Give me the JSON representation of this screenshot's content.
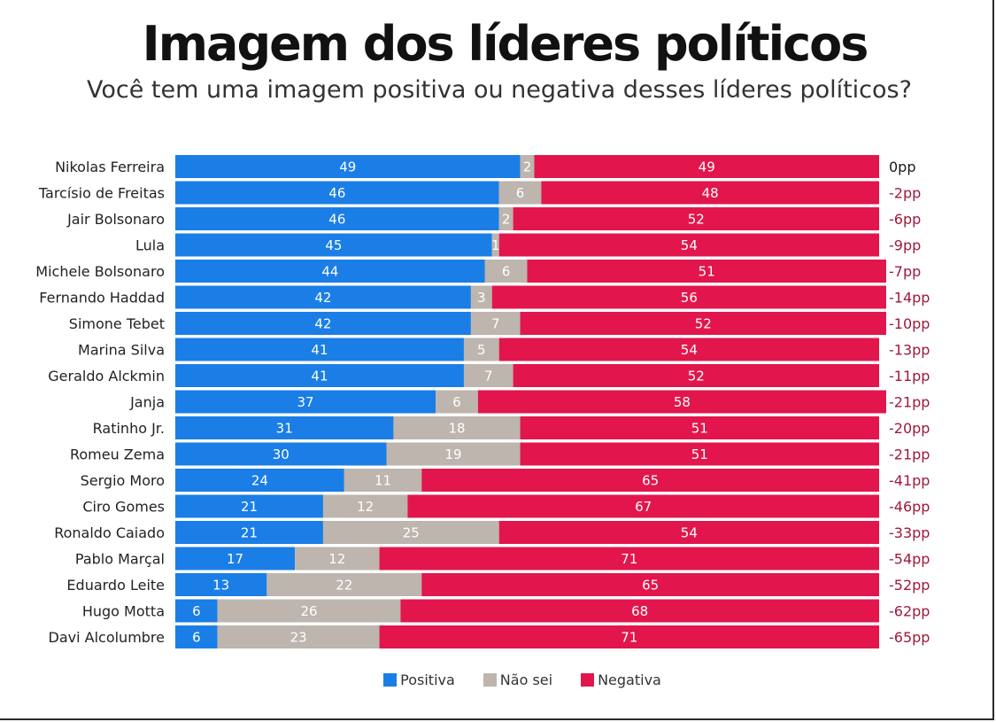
{
  "header": {
    "title": "Imagem dos líderes políticos",
    "subtitle": "Você tem uma imagem positiva ou negativa desses líderes políticos?"
  },
  "colors": {
    "positive": "#1a7ee6",
    "unsure": "#bdb5ae",
    "negative": "#e2164c",
    "net_zero": "#1a1a1a",
    "net_negative": "#a0183c"
  },
  "chart_data": {
    "type": "bar",
    "orientation": "horizontal",
    "stacked": true,
    "categories": [
      "Nikolas Ferreira",
      "Tarcísio de Freitas",
      "Jair Bolsonaro",
      "Lula",
      "Michele Bolsonaro",
      "Fernando Haddad",
      "Simone Tebet",
      "Marina Silva",
      "Geraldo Alckmin",
      "Janja",
      "Ratinho Jr.",
      "Romeu Zema",
      "Sergio Moro",
      "Ciro Gomes",
      "Ronaldo Caiado",
      "Pablo Marçal",
      "Eduardo Leite",
      "Hugo Motta",
      "Davi Alcolumbre"
    ],
    "series": [
      {
        "name": "Positiva",
        "values": [
          49,
          46,
          46,
          45,
          44,
          42,
          42,
          41,
          41,
          37,
          31,
          30,
          24,
          21,
          21,
          17,
          13,
          6,
          6
        ]
      },
      {
        "name": "Não sei",
        "values": [
          2,
          6,
          2,
          1,
          6,
          3,
          7,
          5,
          7,
          6,
          18,
          19,
          11,
          12,
          25,
          12,
          22,
          26,
          23
        ]
      },
      {
        "name": "Negativa",
        "values": [
          49,
          48,
          52,
          54,
          51,
          56,
          52,
          54,
          52,
          58,
          51,
          51,
          65,
          67,
          54,
          71,
          65,
          68,
          71
        ]
      }
    ],
    "net_labels": [
      "0pp",
      "-2pp",
      "-6pp",
      "-9pp",
      "-7pp",
      "-14pp",
      "-10pp",
      "-13pp",
      "-11pp",
      "-21pp",
      "-20pp",
      "-21pp",
      "-41pp",
      "-46pp",
      "-33pp",
      "-54pp",
      "-52pp",
      "-62pp",
      "-65pp"
    ],
    "xlim": [
      0,
      100
    ],
    "legend_position": "bottom-center"
  },
  "legend": [
    {
      "label": "Positiva"
    },
    {
      "label": "Não sei"
    },
    {
      "label": "Negativa"
    }
  ]
}
